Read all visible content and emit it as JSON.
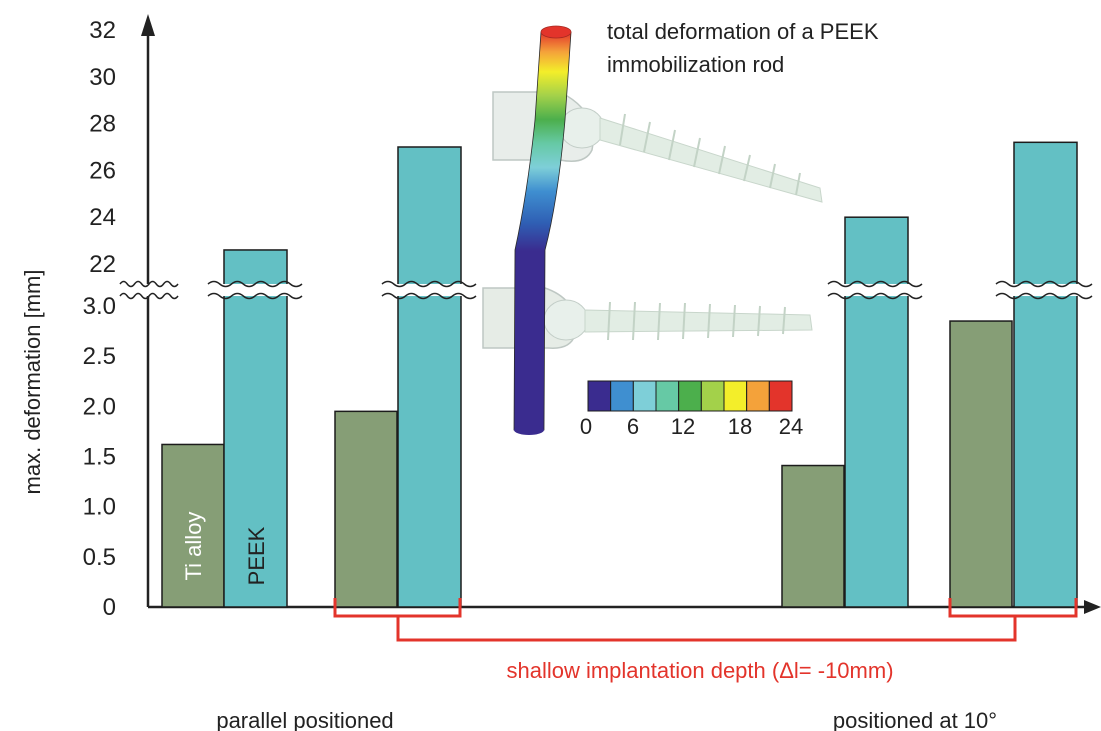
{
  "chart_data": {
    "type": "bar",
    "ylabel": "max. deformation [mm]",
    "y_axis_lower": {
      "range": [
        0,
        3.0
      ],
      "ticks": [
        "0",
        "0.5",
        "1.0",
        "1.5",
        "2.0",
        "2.5",
        "3.0"
      ]
    },
    "y_axis_upper": {
      "range": [
        22,
        32
      ],
      "ticks": [
        "22",
        "24",
        "26",
        "28",
        "30",
        "32"
      ]
    },
    "axis_break": true,
    "groups": [
      {
        "id": "g1",
        "ti": 1.62,
        "peek": 22.6
      },
      {
        "id": "g2",
        "ti": 1.95,
        "peek": 27.0
      },
      {
        "id": "g3",
        "ti": 1.41,
        "peek": 24.0
      },
      {
        "id": "g4",
        "ti": 2.85,
        "peek": 27.2
      }
    ],
    "series": [
      {
        "name": "Ti alloy",
        "color": "#869e76",
        "values": [
          1.62,
          1.95,
          1.41,
          2.85
        ]
      },
      {
        "name": "PEEK",
        "color": "#63c0c4",
        "values": [
          22.6,
          27.0,
          24.0,
          27.2
        ]
      }
    ],
    "category_labels": [
      "parallel positioned",
      "positioned at 10°"
    ],
    "bracket_label": "shallow implantation depth  (Δl= -10mm)",
    "bracket_color": "#e3342b",
    "inset": {
      "title": "total deformation of a PEEK immobilization rod",
      "title_lines": [
        "total deformation of a PEEK",
        "immobilization rod"
      ],
      "colorbar_ticks": [
        "0",
        "6",
        "12",
        "18",
        "24"
      ],
      "colorbar_colors": [
        "#3a2c8f",
        "#3f8fd0",
        "#7ecfd8",
        "#66c9a5",
        "#4caf4c",
        "#a3d14a",
        "#f3ee2a",
        "#f4a23a",
        "#e3342b"
      ]
    }
  }
}
